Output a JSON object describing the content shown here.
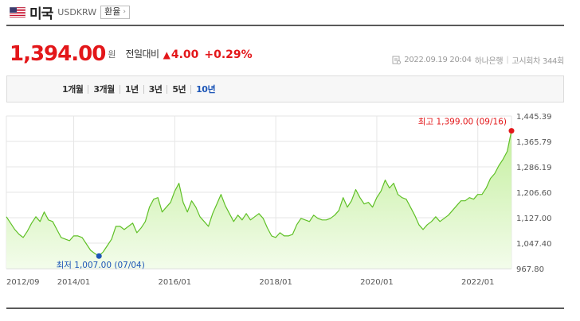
{
  "header": {
    "country": "미국",
    "code": "USDKRW",
    "tag_label": "환율",
    "tag_icon": "chevron-right-icon"
  },
  "price": {
    "value": "1,394.00",
    "unit": "원",
    "compare_label": "전일대비",
    "direction_icon": "up-triangle-icon",
    "change": "4.00",
    "change_pct": "+0.29%"
  },
  "meta": {
    "datetime": "2022.09.19 20:04",
    "bank": "하나은행",
    "notice": "고시회차 344회"
  },
  "period_tabs": [
    {
      "label": "1개월",
      "active": false
    },
    {
      "label": "3개월",
      "active": false
    },
    {
      "label": "1년",
      "active": false
    },
    {
      "label": "3년",
      "active": false
    },
    {
      "label": "5년",
      "active": false
    },
    {
      "label": "10년",
      "active": true
    }
  ],
  "colors": {
    "up": "#e3171a",
    "active_tab": "#1d56b7",
    "line": "#5fc026",
    "fill_top": "#c4ef9e",
    "fill_bottom": "#f3fceb",
    "max_dot": "#e3171a",
    "min_dot": "#1d56b7"
  },
  "chart_data": {
    "type": "area",
    "x_start": "2012/09",
    "x_end": "2022/09",
    "xticks": [
      "2012/09",
      "2014/01",
      "2016/01",
      "2018/01",
      "2020/01",
      "2022/01"
    ],
    "yticks": [
      "1,445.39",
      "1,365.79",
      "1,286.19",
      "1,206.60",
      "1,127.00",
      "1,047.40",
      "967.80"
    ],
    "ylim": [
      967.8,
      1445.39
    ],
    "grid": true,
    "max_label": "최고 1,399.00 (09/16)",
    "min_label": "최저 1,007.00 (07/04)",
    "max_point": [
      "2022/09",
      1399.0
    ],
    "min_point": [
      "2014/07",
      1007.0
    ],
    "series": [
      {
        "values": [
          [
            "2012/09",
            1130
          ],
          [
            "2012/10",
            1110
          ],
          [
            "2012/11",
            1090
          ],
          [
            "2012/12",
            1075
          ],
          [
            "2013/01",
            1065
          ],
          [
            "2013/02",
            1085
          ],
          [
            "2013/03",
            1110
          ],
          [
            "2013/04",
            1130
          ],
          [
            "2013/05",
            1115
          ],
          [
            "2013/06",
            1145
          ],
          [
            "2013/07",
            1120
          ],
          [
            "2013/08",
            1115
          ],
          [
            "2013/09",
            1090
          ],
          [
            "2013/10",
            1065
          ],
          [
            "2013/11",
            1060
          ],
          [
            "2013/12",
            1055
          ],
          [
            "2014/01",
            1070
          ],
          [
            "2014/02",
            1070
          ],
          [
            "2014/03",
            1065
          ],
          [
            "2014/04",
            1045
          ],
          [
            "2014/05",
            1025
          ],
          [
            "2014/06",
            1015
          ],
          [
            "2014/07",
            1007
          ],
          [
            "2014/08",
            1020
          ],
          [
            "2014/09",
            1040
          ],
          [
            "2014/10",
            1060
          ],
          [
            "2014/11",
            1100
          ],
          [
            "2014/12",
            1100
          ],
          [
            "2015/01",
            1090
          ],
          [
            "2015/02",
            1100
          ],
          [
            "2015/03",
            1110
          ],
          [
            "2015/04",
            1080
          ],
          [
            "2015/05",
            1095
          ],
          [
            "2015/06",
            1115
          ],
          [
            "2015/07",
            1160
          ],
          [
            "2015/08",
            1185
          ],
          [
            "2015/09",
            1190
          ],
          [
            "2015/10",
            1145
          ],
          [
            "2015/11",
            1160
          ],
          [
            "2015/12",
            1175
          ],
          [
            "2016/01",
            1210
          ],
          [
            "2016/02",
            1235
          ],
          [
            "2016/03",
            1175
          ],
          [
            "2016/04",
            1145
          ],
          [
            "2016/05",
            1180
          ],
          [
            "2016/06",
            1160
          ],
          [
            "2016/07",
            1130
          ],
          [
            "2016/08",
            1115
          ],
          [
            "2016/09",
            1100
          ],
          [
            "2016/10",
            1140
          ],
          [
            "2016/11",
            1170
          ],
          [
            "2016/12",
            1200
          ],
          [
            "2017/01",
            1165
          ],
          [
            "2017/02",
            1140
          ],
          [
            "2017/03",
            1115
          ],
          [
            "2017/04",
            1135
          ],
          [
            "2017/05",
            1120
          ],
          [
            "2017/06",
            1140
          ],
          [
            "2017/07",
            1120
          ],
          [
            "2017/08",
            1130
          ],
          [
            "2017/09",
            1140
          ],
          [
            "2017/10",
            1125
          ],
          [
            "2017/11",
            1095
          ],
          [
            "2017/12",
            1070
          ],
          [
            "2018/01",
            1065
          ],
          [
            "2018/02",
            1080
          ],
          [
            "2018/03",
            1070
          ],
          [
            "2018/04",
            1070
          ],
          [
            "2018/05",
            1075
          ],
          [
            "2018/06",
            1105
          ],
          [
            "2018/07",
            1125
          ],
          [
            "2018/08",
            1120
          ],
          [
            "2018/09",
            1115
          ],
          [
            "2018/10",
            1135
          ],
          [
            "2018/11",
            1125
          ],
          [
            "2018/12",
            1120
          ],
          [
            "2019/01",
            1120
          ],
          [
            "2019/02",
            1125
          ],
          [
            "2019/03",
            1135
          ],
          [
            "2019/04",
            1150
          ],
          [
            "2019/05",
            1190
          ],
          [
            "2019/06",
            1160
          ],
          [
            "2019/07",
            1180
          ],
          [
            "2019/08",
            1215
          ],
          [
            "2019/09",
            1190
          ],
          [
            "2019/10",
            1170
          ],
          [
            "2019/11",
            1175
          ],
          [
            "2019/12",
            1160
          ],
          [
            "2020/01",
            1190
          ],
          [
            "2020/02",
            1210
          ],
          [
            "2020/03",
            1245
          ],
          [
            "2020/04",
            1220
          ],
          [
            "2020/05",
            1235
          ],
          [
            "2020/06",
            1200
          ],
          [
            "2020/07",
            1190
          ],
          [
            "2020/08",
            1185
          ],
          [
            "2020/09",
            1160
          ],
          [
            "2020/10",
            1135
          ],
          [
            "2020/11",
            1105
          ],
          [
            "2020/12",
            1090
          ],
          [
            "2021/01",
            1105
          ],
          [
            "2021/02",
            1115
          ],
          [
            "2021/03",
            1130
          ],
          [
            "2021/04",
            1115
          ],
          [
            "2021/05",
            1125
          ],
          [
            "2021/06",
            1135
          ],
          [
            "2021/07",
            1150
          ],
          [
            "2021/08",
            1165
          ],
          [
            "2021/09",
            1180
          ],
          [
            "2021/10",
            1180
          ],
          [
            "2021/11",
            1190
          ],
          [
            "2021/12",
            1185
          ],
          [
            "2022/01",
            1200
          ],
          [
            "2022/02",
            1200
          ],
          [
            "2022/03",
            1220
          ],
          [
            "2022/04",
            1250
          ],
          [
            "2022/05",
            1265
          ],
          [
            "2022/06",
            1290
          ],
          [
            "2022/07",
            1310
          ],
          [
            "2022/08",
            1335
          ],
          [
            "2022/09",
            1399
          ]
        ]
      }
    ]
  }
}
